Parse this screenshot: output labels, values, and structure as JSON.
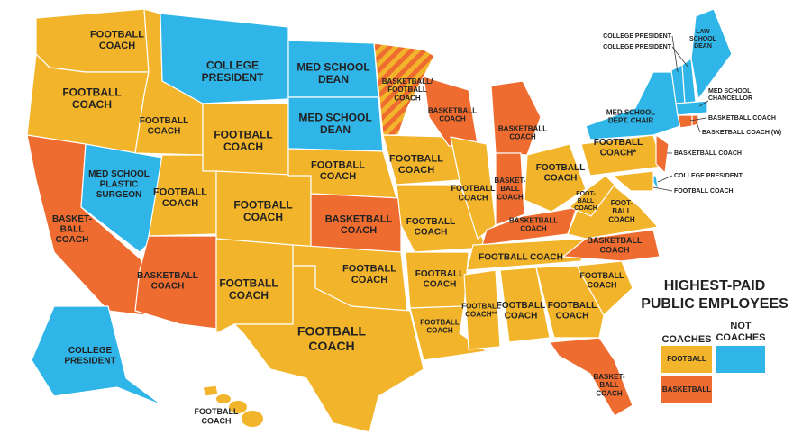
{
  "title": [
    "HIGHEST-PAID",
    "PUBLIC EMPLOYEES"
  ],
  "legend": {
    "coaches": "COACHES",
    "not_coaches": [
      "NOT",
      "COACHES"
    ],
    "football": "FOOTBALL",
    "basketball": "BASKETBALL"
  },
  "regions": [
    {
      "label": [
        "FOOTBALL",
        "COACH"
      ]
    },
    {
      "label": [
        "FOOTBALL",
        "COACH"
      ]
    },
    {
      "label": [
        "BASKET-",
        "BALL",
        "COACH"
      ]
    },
    {
      "label": [
        "MED SCHOOL",
        "PLASTIC",
        "SURGEON"
      ]
    },
    {
      "label": [
        "FOOTBALL",
        "COACH"
      ]
    },
    {
      "label": [
        "COLLEGE",
        "PRESIDENT"
      ]
    },
    {
      "label": [
        "FOOTBALL",
        "COACH"
      ]
    },
    {
      "label": [
        "FOOTBALL",
        "COACH"
      ]
    },
    {
      "label": [
        "FOOTBALL",
        "COACH"
      ]
    },
    {
      "label": [
        "BASKETBALL",
        "COACH"
      ]
    },
    {
      "label": [
        "FOOTBALL",
        "COACH"
      ]
    },
    {
      "label": [
        "MED SCHOOL",
        "DEAN"
      ]
    },
    {
      "label": [
        "MED SCHOOL",
        "DEAN"
      ]
    },
    {
      "label": [
        "FOOTBALL",
        "COACH"
      ]
    },
    {
      "label": [
        "BASKETBALL",
        "COACH"
      ]
    },
    {
      "label": [
        "FOOTBALL",
        "COACH"
      ]
    },
    {
      "label": [
        "FOOTBALL",
        "COACH"
      ]
    },
    {
      "label": [
        "BASKETBALL/",
        "FOOTBALL",
        "COACH"
      ]
    },
    {
      "label": [
        "FOOTBALL",
        "COACH"
      ]
    },
    {
      "label": [
        "FOOTBALL",
        "COACH"
      ]
    },
    {
      "label": [
        "FOOTBALL",
        "COACH"
      ]
    },
    {
      "label": [
        "FOOTBALL",
        "COACH"
      ]
    },
    {
      "label": [
        "BASKETBALL",
        "COACH"
      ]
    },
    {
      "label": [
        "FOOTBALL",
        "COACH"
      ]
    },
    {
      "label": [
        "BASKETBALL",
        "COACH"
      ]
    },
    {
      "label": [
        "BASKET-",
        "BALL",
        "COACH"
      ]
    },
    {
      "label": [
        "FOOTBALL",
        "COACH"
      ]
    },
    {
      "label": [
        "BASKETBALL",
        "COACH"
      ]
    },
    {
      "label": [
        "FOOTBALL COACH"
      ]
    },
    {
      "label": [
        "FOOTBALL",
        "COACH**"
      ]
    },
    {
      "label": [
        "FOOTBALL",
        "COACH"
      ]
    },
    {
      "label": [
        "FOOTBALL",
        "COACH"
      ]
    },
    {
      "label": [
        "BASKET-",
        "BALL",
        "COACH"
      ]
    },
    {
      "label": [
        "FOOTBALL",
        "COACH"
      ]
    },
    {
      "label": [
        "BASKETBALL",
        "COACH"
      ]
    },
    {
      "label": [
        "FOOT-",
        "BALL",
        "COACH"
      ]
    },
    {
      "label": [
        "FOOT-",
        "BALL",
        "COACH"
      ]
    },
    {
      "label": [
        "FOOTBALL",
        "COACH*"
      ]
    },
    {
      "label": [
        "MED SCHOOL",
        "DEPT. CHAIR"
      ]
    },
    {
      "label": [
        "BASKETBALL COACH"
      ]
    },
    {
      "label": [
        "COLLEGE PRESIDENT"
      ]
    },
    {
      "label": [
        "FOOTBALL COACH"
      ]
    },
    {
      "label": [
        "COLLEGE PRESIDENT"
      ]
    },
    {
      "label": [
        "COLLEGE PRESIDENT"
      ]
    },
    {
      "label": [
        "LAW",
        "SCHOOL",
        "DEAN"
      ]
    },
    {
      "label": [
        "MED SCHOOL",
        "CHANCELLOR"
      ]
    },
    {
      "label": [
        "BASKETBALL COACH"
      ]
    },
    {
      "label": [
        "BASKETBALL COACH (W)"
      ]
    },
    {
      "label": [
        "COLLEGE",
        "PRESIDENT"
      ]
    },
    {
      "label": [
        "FOOTBALL",
        "COACH"
      ]
    }
  ]
}
